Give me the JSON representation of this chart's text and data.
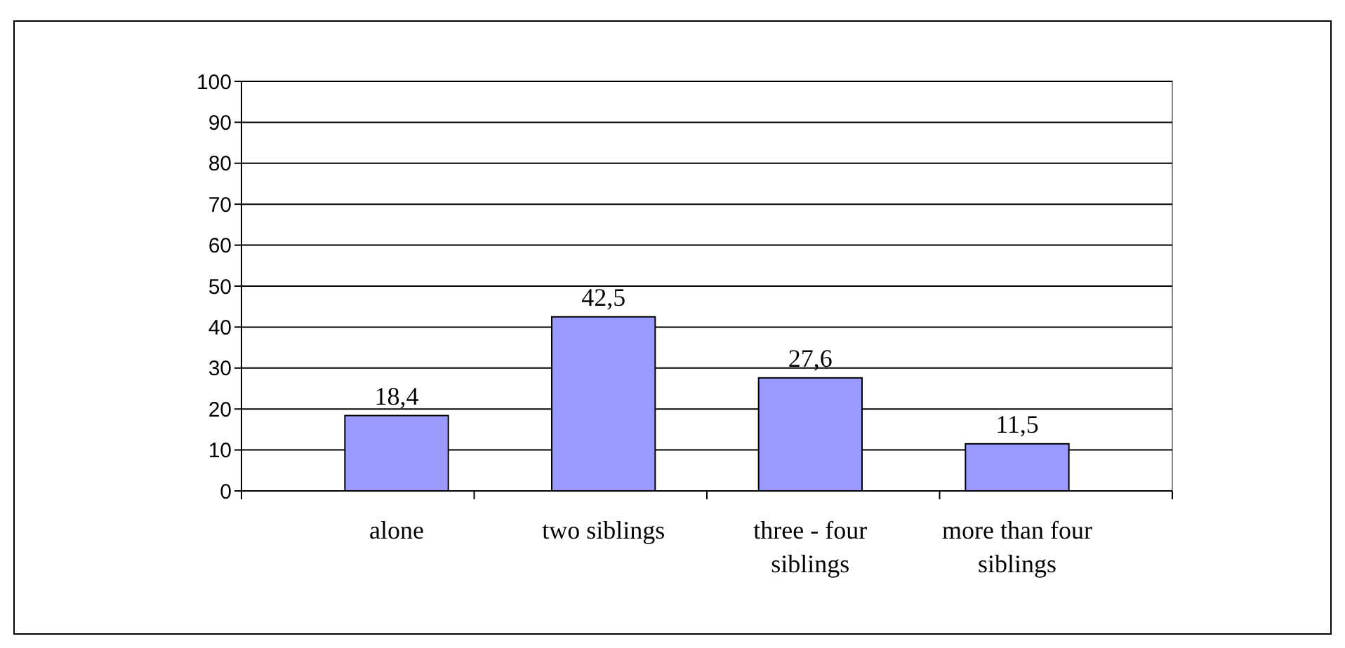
{
  "chart_data": {
    "type": "bar",
    "categories": [
      "alone",
      "two siblings",
      "three - four siblings",
      "more than four siblings"
    ],
    "values": [
      18.4,
      42.5,
      27.6,
      11.5
    ],
    "color": "#9999ff",
    "value_labels": [
      "18,4",
      "42,5",
      "27,6",
      "11,5"
    ],
    "ylim": [
      0,
      100
    ],
    "yticks": [
      0,
      10,
      20,
      30,
      40,
      50,
      60,
      70,
      80,
      90,
      100
    ],
    "grid": "y"
  }
}
